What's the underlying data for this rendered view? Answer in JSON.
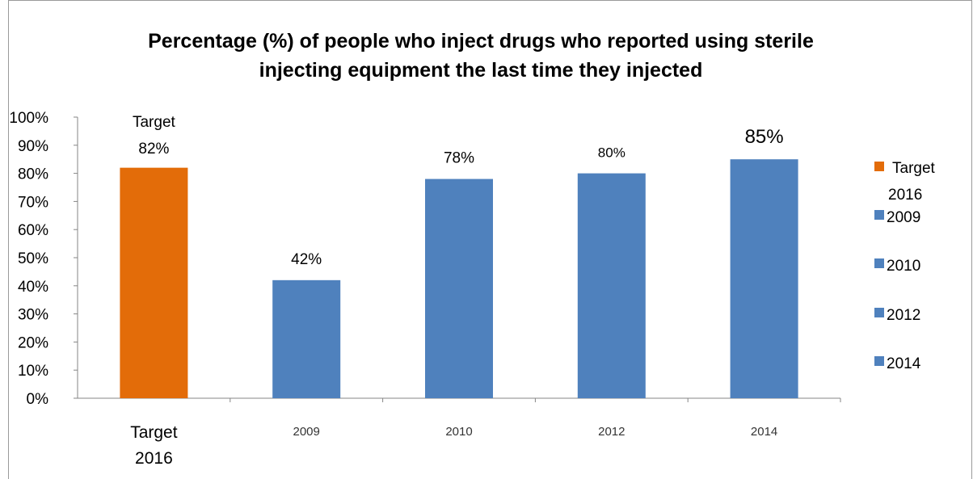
{
  "chart_data": {
    "type": "bar",
    "title": "Percentage (%) of people who inject drugs who reported using  sterile injecting equipment the last time they injected",
    "title_lines": [
      "Percentage (%) of people who inject drugs who reported using  sterile",
      "injecting equipment the last time they injected"
    ],
    "categories": [
      "Target 2016",
      "2009",
      "2010",
      "2012",
      "2014"
    ],
    "values": [
      82,
      42,
      78,
      80,
      85
    ],
    "data_labels": [
      "82%",
      "42%",
      "78%",
      "80%",
      "85%"
    ],
    "target_prefix": "Target",
    "bar_colors": [
      "#E36C09",
      "#4F81BD",
      "#4F81BD",
      "#4F81BD",
      "#4F81BD"
    ],
    "ylim": [
      0,
      100
    ],
    "yticks": [
      "0%",
      "10%",
      "20%",
      "30%",
      "40%",
      "50%",
      "60%",
      "70%",
      "80%",
      "90%",
      "100%"
    ],
    "xlabel": "",
    "ylabel": "",
    "grid": false,
    "legend": {
      "placement": "right",
      "entries": [
        "Target 2016",
        "2009",
        "2010",
        "2012",
        "2014"
      ]
    }
  }
}
